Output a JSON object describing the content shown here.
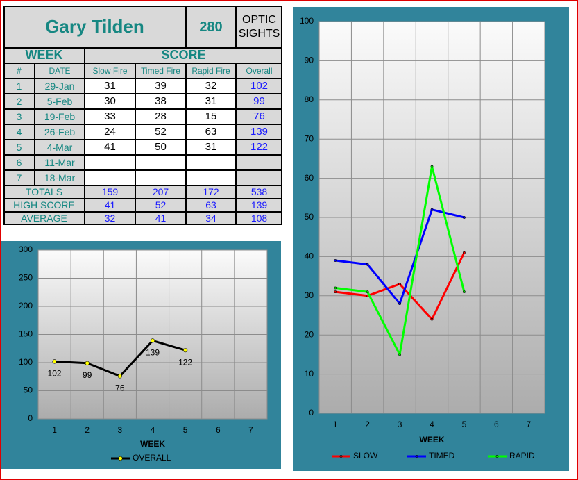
{
  "header": {
    "name": "Gary Tilden",
    "score": 280,
    "subtitle": "OPTIC SIGHTS"
  },
  "table": {
    "group_headers": [
      "WEEK",
      "SCORE"
    ],
    "columns": [
      "#",
      "DATE",
      "Slow Fire",
      "Timed Fire",
      "Rapid Fire",
      "Overall"
    ],
    "rows": [
      {
        "num": 1,
        "date": "29-Jan",
        "slow_fire": 31,
        "timed_fire": 39,
        "rapid_fire": 32,
        "overall": 102
      },
      {
        "num": 2,
        "date": "5-Feb",
        "slow_fire": 30,
        "timed_fire": 38,
        "rapid_fire": 31,
        "overall": 99
      },
      {
        "num": 3,
        "date": "19-Feb",
        "slow_fire": 33,
        "timed_fire": 28,
        "rapid_fire": 15,
        "overall": 76
      },
      {
        "num": 4,
        "date": "26-Feb",
        "slow_fire": 24,
        "timed_fire": 52,
        "rapid_fire": 63,
        "overall": 139
      },
      {
        "num": 5,
        "date": "4-Mar",
        "slow_fire": 41,
        "timed_fire": 50,
        "rapid_fire": 31,
        "overall": 122
      },
      {
        "num": 6,
        "date": "11-Mar"
      },
      {
        "num": 7,
        "date": "18-Mar"
      }
    ],
    "summary": [
      {
        "label": "TOTALS",
        "slow_fire": 159,
        "timed_fire": 207,
        "rapid_fire": 172,
        "overall": 538
      },
      {
        "label": "HIGH SCORE",
        "slow_fire": 41,
        "timed_fire": 52,
        "rapid_fire": 63,
        "overall": 139
      },
      {
        "label": "AVERAGE",
        "slow_fire": 32,
        "timed_fire": 41,
        "rapid_fire": 34,
        "overall": 108
      }
    ]
  },
  "chart_data": [
    {
      "type": "line",
      "x_label": "WEEK",
      "categories": [
        "1",
        "2",
        "3",
        "4",
        "5",
        "6",
        "7"
      ],
      "ylim": [
        0,
        300
      ],
      "yticks": [
        0,
        50,
        100,
        150,
        200,
        250,
        300
      ],
      "grid": true,
      "data_labels": true,
      "legend": "bottom",
      "series": [
        {
          "name": "OVERALL",
          "color": "#000000",
          "marker_color": "#ffff00",
          "values": [
            102,
            99,
            76,
            139,
            122,
            null,
            null
          ]
        }
      ]
    },
    {
      "type": "line",
      "x_label": "WEEK",
      "categories": [
        "1",
        "2",
        "3",
        "4",
        "5",
        "6",
        "7"
      ],
      "ylim": [
        0,
        100
      ],
      "yticks": [
        0,
        10,
        20,
        30,
        40,
        50,
        60,
        70,
        80,
        90,
        100
      ],
      "grid": true,
      "data_labels": false,
      "legend": "bottom",
      "series": [
        {
          "name": "SLOW",
          "color": "#ff0000",
          "marker_color": "#ff0000",
          "values": [
            31,
            30,
            33,
            24,
            41,
            null,
            null
          ]
        },
        {
          "name": "TIMED",
          "color": "#0000ff",
          "marker_color": "#0000ff",
          "values": [
            39,
            38,
            28,
            52,
            50,
            null,
            null
          ]
        },
        {
          "name": "RAPID",
          "color": "#00ff00",
          "marker_color": "#00ff00",
          "values": [
            32,
            31,
            15,
            63,
            31,
            null,
            null
          ]
        }
      ]
    }
  ]
}
